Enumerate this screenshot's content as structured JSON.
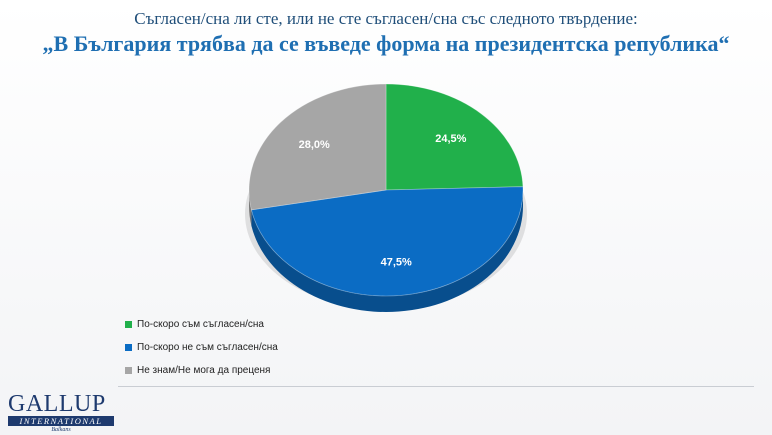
{
  "header": {
    "question": "Съгласен/сна ли сте, или не сте съгласен/сна със следното твърдение:",
    "statement": "„В България трябва да се въведе форма на президентска република“"
  },
  "chart_data": {
    "type": "pie",
    "title": "„В България трябва да се въведе форма на президентска република“",
    "slices": [
      {
        "label": "По-скоро съм съгласен/сна",
        "value": 24.5,
        "value_label": "24,5%",
        "color": "#21b04b"
      },
      {
        "label": "По-скоро не съм съгласен/сна",
        "value": 47.5,
        "value_label": "47,5%",
        "color": "#0b6cc4"
      },
      {
        "label": "Не знам/Не мога да преценя",
        "value": 28.0,
        "value_label": "28,0%",
        "color": "#a6a6a6"
      }
    ],
    "legend_position": "bottom-left",
    "style": "3d"
  },
  "logo": {
    "name": "GALLUP",
    "subtitle": "INTERNATIONAL",
    "region": "Balkans"
  }
}
